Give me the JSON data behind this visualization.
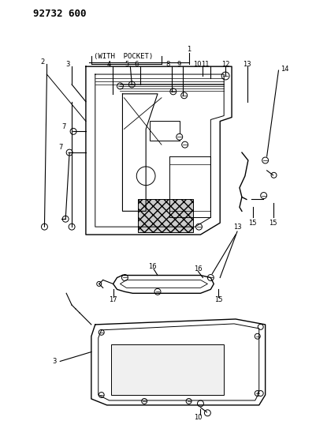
{
  "title": "92732 600",
  "background_color": "#ffffff",
  "line_color": "#000000",
  "figsize": [
    4.02,
    5.33
  ],
  "dpi": 100
}
